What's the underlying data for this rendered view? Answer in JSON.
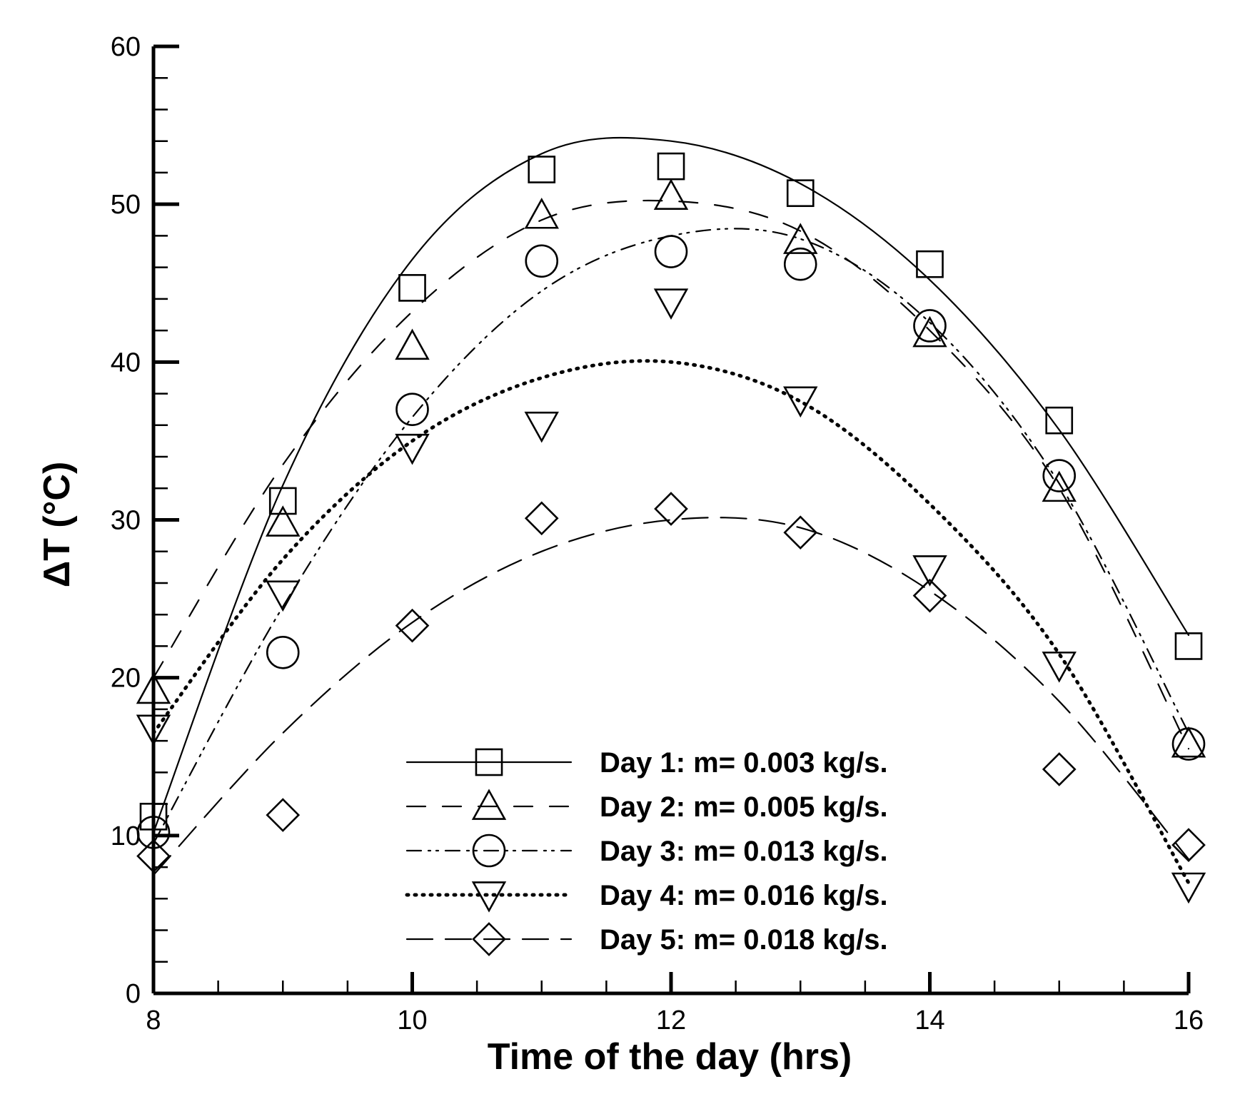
{
  "chart_data": {
    "type": "line",
    "title": "",
    "xlabel": "Time of the day (hrs)",
    "ylabel": "ΔT (°C)",
    "xlim": [
      8,
      16
    ],
    "ylim": [
      0,
      60
    ],
    "x_ticks": [
      "8",
      "10",
      "12",
      "14",
      "16"
    ],
    "y_ticks": [
      "0",
      "10",
      "20",
      "30",
      "40",
      "50",
      "60"
    ],
    "legend_position": "bottom-right",
    "series": [
      {
        "name": "Day 1: m= 0.003 kg/s.",
        "marker": "square",
        "line_style": "solid",
        "x": [
          8,
          9,
          10,
          11,
          12,
          13,
          14,
          15,
          16
        ],
        "points": [
          11.2,
          31.2,
          44.7,
          52.2,
          52.4,
          50.7,
          46.2,
          36.3,
          22.0
        ],
        "fit": [
          10.2,
          32.2,
          46.5,
          53.2,
          54.0,
          51.3,
          45.2,
          35.7,
          22.7
        ]
      },
      {
        "name": "Day 2: m= 0.005 kg/s.",
        "marker": "triangle-up",
        "line_style": "dashed",
        "x": [
          8,
          9,
          10,
          11,
          12,
          13,
          14,
          15,
          16
        ],
        "points": [
          19.2,
          29.8,
          41.0,
          49.3,
          50.5,
          47.7,
          41.8,
          32.0,
          15.8
        ],
        "fit": [
          20.0,
          33.5,
          43.2,
          49.0,
          50.2,
          48.3,
          42.0,
          32.0,
          15.5
        ]
      },
      {
        "name": "Day 3: m= 0.013 kg/s.",
        "marker": "circle",
        "line_style": "dash-dot-dot",
        "x": [
          8,
          9,
          10,
          11,
          12,
          13,
          14,
          15,
          16
        ],
        "points": [
          10.2,
          21.6,
          37.0,
          46.4,
          47.0,
          46.2,
          42.3,
          32.8,
          15.8
        ],
        "fit": [
          9.5,
          24.5,
          36.5,
          44.5,
          48.0,
          47.8,
          42.5,
          32.3,
          16.5
        ]
      },
      {
        "name": "Day 4: m= 0.016 kg/s.",
        "marker": "triangle-down",
        "line_style": "dotted",
        "x": [
          8,
          9,
          10,
          11,
          12,
          13,
          14,
          15,
          16
        ],
        "points": [
          16.8,
          25.3,
          34.6,
          36.0,
          43.8,
          37.6,
          26.9,
          20.8,
          6.8
        ],
        "fit": [
          16.5,
          27.5,
          35.0,
          39.0,
          40.0,
          37.5,
          31.0,
          21.5,
          7.0
        ]
      },
      {
        "name": "Day 5: m= 0.018 kg/s.",
        "marker": "diamond",
        "line_style": "long-dash",
        "x": [
          8,
          9,
          10,
          11,
          12,
          13,
          14,
          15,
          16
        ],
        "points": [
          8.7,
          11.3,
          23.3,
          30.1,
          30.7,
          29.2,
          25.2,
          14.2,
          9.4
        ],
        "fit": [
          7.5,
          16.5,
          23.5,
          28.0,
          30.0,
          29.5,
          25.5,
          18.5,
          8.5
        ]
      }
    ]
  }
}
